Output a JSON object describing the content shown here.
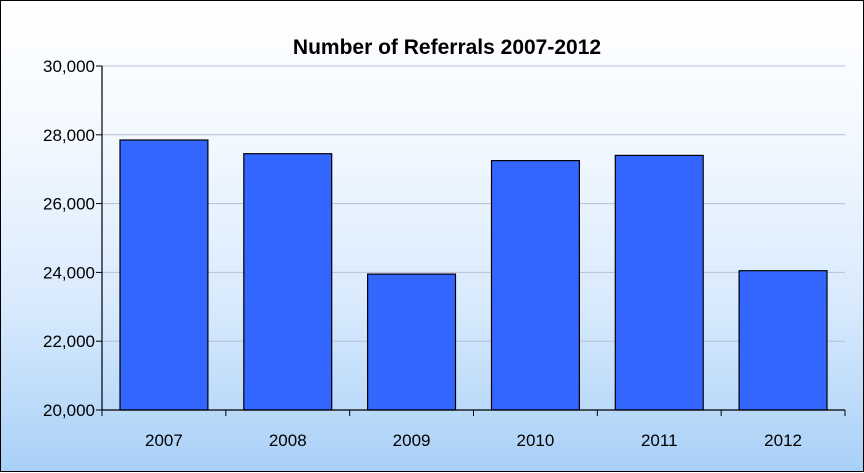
{
  "chart_data": {
    "type": "bar",
    "title": "Number of Referrals 2007-2012",
    "xlabel": "",
    "ylabel": "",
    "categories": [
      "2007",
      "2008",
      "2009",
      "2010",
      "2011",
      "2012"
    ],
    "values": [
      27850,
      27450,
      23950,
      27250,
      27400,
      24050
    ],
    "ylim": [
      20000,
      30000
    ],
    "yticks": [
      20000,
      22000,
      24000,
      26000,
      28000,
      30000
    ],
    "ytick_labels": [
      "20,000",
      "22,000",
      "24,000",
      "26,000",
      "28,000",
      "30,000"
    ],
    "grid": true,
    "legend": "none",
    "colors": {
      "bar_fill": "#3366ff",
      "bar_stroke": "#000000",
      "grid": "#b8c0d8",
      "axis": "#000000"
    }
  }
}
